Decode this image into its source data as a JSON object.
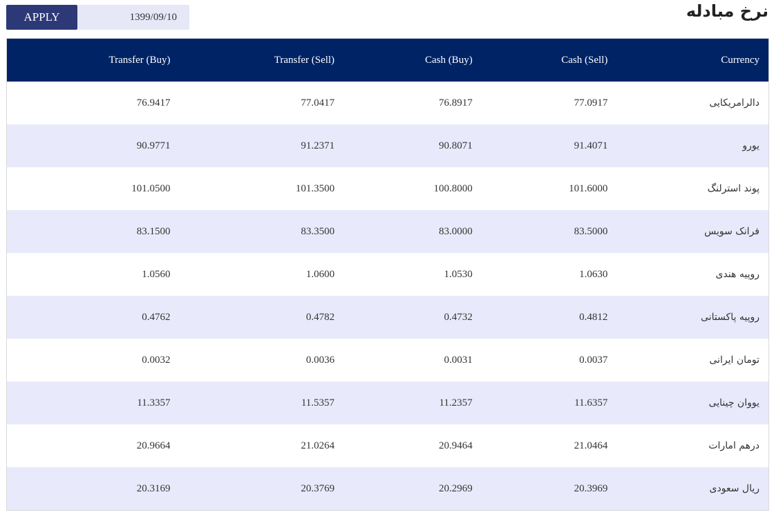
{
  "page": {
    "title": "نرخ مبادله"
  },
  "toolbar": {
    "apply_label": "APPLY",
    "date_value": "1399/09/10"
  },
  "table": {
    "headers": {
      "transfer_buy": "Transfer (Buy)",
      "transfer_sell": "Transfer (Sell)",
      "cash_buy": "Cash (Buy)",
      "cash_sell": "Cash (Sell)",
      "currency": "Currency"
    },
    "rows": [
      {
        "currency": "دالرامریکایی",
        "transfer_buy": "76.9417",
        "transfer_sell": "77.0417",
        "cash_buy": "76.8917",
        "cash_sell": "77.0917"
      },
      {
        "currency": "یورو",
        "transfer_buy": "90.9771",
        "transfer_sell": "91.2371",
        "cash_buy": "90.8071",
        "cash_sell": "91.4071"
      },
      {
        "currency": "پوند استرلنگ",
        "transfer_buy": "101.0500",
        "transfer_sell": "101.3500",
        "cash_buy": "100.8000",
        "cash_sell": "101.6000"
      },
      {
        "currency": "فرانک سویس",
        "transfer_buy": "83.1500",
        "transfer_sell": "83.3500",
        "cash_buy": "83.0000",
        "cash_sell": "83.5000"
      },
      {
        "currency": "روپیه هندی",
        "transfer_buy": "1.0560",
        "transfer_sell": "1.0600",
        "cash_buy": "1.0530",
        "cash_sell": "1.0630"
      },
      {
        "currency": "روپیه پاکستانی",
        "transfer_buy": "0.4762",
        "transfer_sell": "0.4782",
        "cash_buy": "0.4732",
        "cash_sell": "0.4812"
      },
      {
        "currency": "تومان ایرانی",
        "transfer_buy": "0.0032",
        "transfer_sell": "0.0036",
        "cash_buy": "0.0031",
        "cash_sell": "0.0037"
      },
      {
        "currency": "یووان چینایی",
        "transfer_buy": "11.3357",
        "transfer_sell": "11.5357",
        "cash_buy": "11.2357",
        "cash_sell": "11.6357"
      },
      {
        "currency": "درهم امارات",
        "transfer_buy": "20.9664",
        "transfer_sell": "21.0264",
        "cash_buy": "20.9464",
        "cash_sell": "21.0464"
      },
      {
        "currency": "ریال سعودی",
        "transfer_buy": "20.3169",
        "transfer_sell": "20.3769",
        "cash_buy": "20.2969",
        "cash_sell": "20.3969"
      }
    ]
  },
  "colors": {
    "header_bg": "#002366",
    "apply_bg": "#2d3977",
    "stripe_bg": "#e8eafb",
    "input_bg": "#e6e8f7"
  }
}
